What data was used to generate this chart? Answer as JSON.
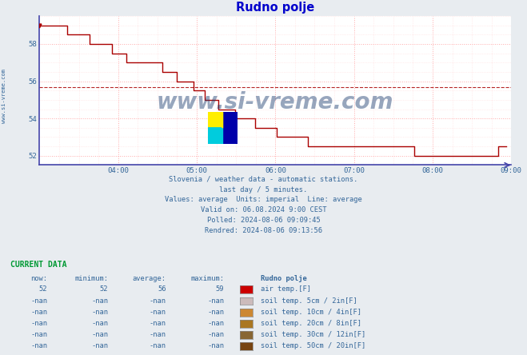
{
  "title": "Rudno polje",
  "title_color": "#0000cc",
  "bg_color": "#e8ecf0",
  "plot_bg_color": "#ffffff",
  "line_color": "#aa0000",
  "axis_color": "#4444aa",
  "grid_color_major": "#ffaaaa",
  "grid_color_minor": "#ffdddd",
  "xlim": [
    0,
    288
  ],
  "ylim": [
    51.5,
    59.5
  ],
  "yticks": [
    52,
    54,
    56,
    58
  ],
  "xtick_labels": [
    "04:00",
    "05:00",
    "06:00",
    "07:00",
    "08:00",
    "09:00"
  ],
  "xtick_positions": [
    48,
    96,
    144,
    192,
    240,
    288
  ],
  "avg_line_y": 55.7,
  "watermark": "www.si-vreme.com",
  "watermark_color": "#1a3a6e",
  "side_label": "www.si-vreme.com",
  "info_color": "#336699",
  "info_lines": [
    "Slovenia / weather data - automatic stations.",
    "last day / 5 minutes.",
    "Values: average  Units: imperial  Line: average",
    "Valid on: 06.08.2024 9:00 CEST",
    "Polled: 2024-08-06 09:09:45",
    "Rendred: 2024-08-06 09:13:56"
  ],
  "current_data_label": "CURRENT DATA",
  "current_data_color": "#009933",
  "table_headers": [
    "now:",
    "minimum:",
    "average:",
    "maximum:",
    "Rudno polje"
  ],
  "table_rows": [
    [
      "52",
      "52",
      "56",
      "59",
      "#cc0000",
      "air temp.[F]"
    ],
    [
      "-nan",
      "-nan",
      "-nan",
      "-nan",
      "#ccbbbb",
      "soil temp. 5cm / 2in[F]"
    ],
    [
      "-nan",
      "-nan",
      "-nan",
      "-nan",
      "#cc8833",
      "soil temp. 10cm / 4in[F]"
    ],
    [
      "-nan",
      "-nan",
      "-nan",
      "-nan",
      "#aa7722",
      "soil temp. 20cm / 8in[F]"
    ],
    [
      "-nan",
      "-nan",
      "-nan",
      "-nan",
      "#886633",
      "soil temp. 30cm / 12in[F]"
    ],
    [
      "-nan",
      "-nan",
      "-nan",
      "-nan",
      "#774411",
      "soil temp. 50cm / 20in[F]"
    ]
  ],
  "temperature_data": [
    59,
    59,
    59,
    59,
    59,
    59,
    59,
    59,
    59,
    59,
    58.5,
    58.5,
    58.5,
    58.5,
    58.5,
    58.5,
    58.5,
    58.5,
    58,
    58,
    58,
    58,
    58,
    58,
    58,
    58,
    57.5,
    57.5,
    57.5,
    57.5,
    57.5,
    57,
    57,
    57,
    57,
    57,
    57,
    57,
    57,
    57,
    57,
    57,
    57,
    57,
    56.5,
    56.5,
    56.5,
    56.5,
    56.5,
    56,
    56,
    56,
    56,
    56,
    56,
    55.5,
    55.5,
    55.5,
    55.5,
    55,
    55,
    55,
    55,
    55,
    54.5,
    54.5,
    54.5,
    54.5,
    54.5,
    54.5,
    54,
    54,
    54,
    54,
    54,
    54,
    54,
    53.5,
    53.5,
    53.5,
    53.5,
    53.5,
    53.5,
    53.5,
    53.5,
    53,
    53,
    53,
    53,
    53,
    53,
    53,
    53,
    53,
    53,
    53,
    52.5,
    52.5,
    52.5,
    52.5,
    52.5,
    52.5,
    52.5,
    52.5,
    52.5,
    52.5,
    52.5,
    52.5,
    52.5,
    52.5,
    52.5,
    52.5,
    52.5,
    52.5,
    52.5,
    52.5,
    52.5,
    52.5,
    52.5,
    52.5,
    52.5,
    52.5,
    52.5,
    52.5,
    52.5,
    52.5,
    52.5,
    52.5,
    52.5,
    52.5,
    52.5,
    52.5,
    52.5,
    52.5,
    52,
    52,
    52,
    52,
    52,
    52,
    52,
    52,
    52,
    52,
    52,
    52,
    52,
    52,
    52,
    52,
    52,
    52,
    52,
    52,
    52,
    52,
    52,
    52,
    52,
    52,
    52,
    52,
    52,
    52,
    52.5,
    52.5,
    52.5,
    52.5
  ]
}
